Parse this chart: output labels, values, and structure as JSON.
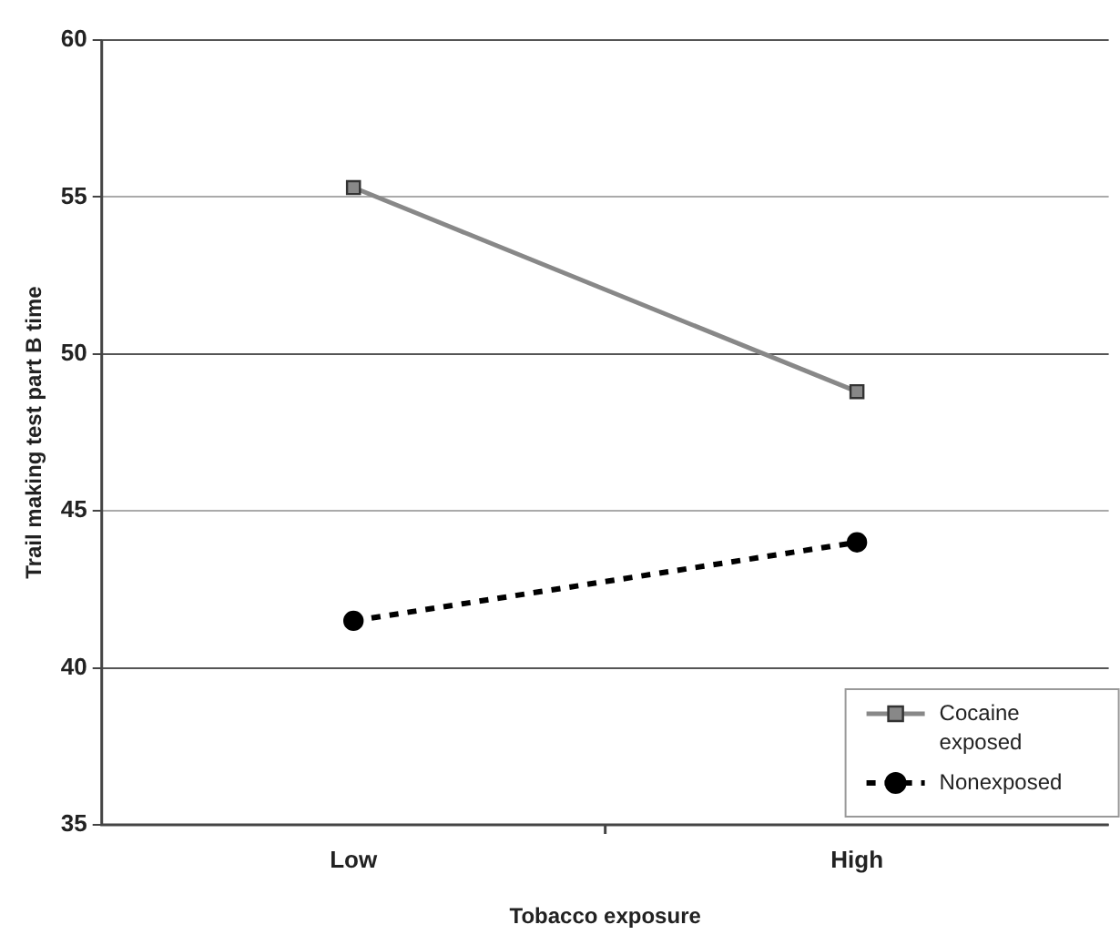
{
  "chart_data": {
    "type": "line",
    "xlabel": "Tobacco exposure",
    "ylabel": "Trail making test part B time",
    "categories": [
      "Low",
      "High"
    ],
    "series": [
      {
        "name": "Cocaine exposed",
        "color": "#888888",
        "values": [
          55.3,
          48.8
        ],
        "marker": "square",
        "line_style": "solid"
      },
      {
        "name": "Nonexposed",
        "color": "#000000",
        "values": [
          41.5,
          44.0
        ],
        "marker": "circle",
        "line_style": "dashed"
      }
    ],
    "ylim": [
      35,
      60
    ],
    "yticks": [
      35,
      40,
      45,
      50,
      55,
      60
    ],
    "grid": "y",
    "legend": "bottom right"
  }
}
